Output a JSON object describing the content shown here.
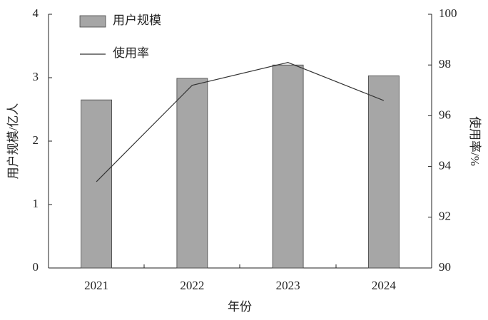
{
  "chart_data": {
    "type": "bar",
    "categories": [
      "2021",
      "2022",
      "2023",
      "2024"
    ],
    "series": [
      {
        "name": "用户规模",
        "color": "#a6a6a6",
        "values": [
          2.65,
          2.99,
          3.2,
          3.03
        ]
      },
      {
        "name": "使用率",
        "color": "#333333",
        "values": [
          93.4,
          97.2,
          98.1,
          96.6
        ],
        "axis": "y2"
      }
    ],
    "xlabel": "年份",
    "ylabel": "用户规模/亿人",
    "y2label": "使用率/%",
    "ylim": [
      0,
      4
    ],
    "yticks": [
      0,
      1,
      2,
      3,
      4
    ],
    "y2lim": [
      90,
      100
    ],
    "y2ticks": [
      90,
      92,
      94,
      96,
      98,
      100
    ],
    "legend": "upper-left"
  }
}
